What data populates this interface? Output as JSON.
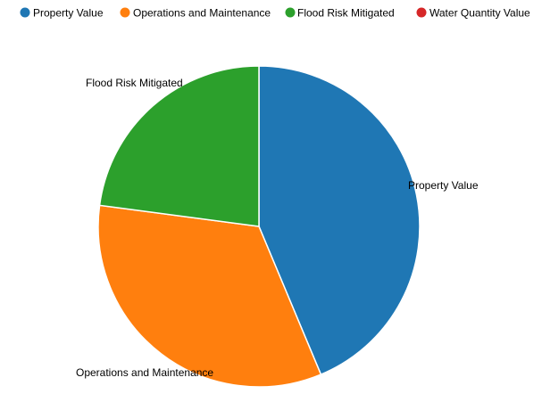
{
  "chart_data": {
    "type": "pie",
    "title": "",
    "categories": [
      "Property Value",
      "Operations and Maintenance",
      "Flood Risk Mitigated",
      "Water Quantity Value"
    ],
    "values": [
      43.7,
      33.4,
      22.9,
      0
    ],
    "value_unit": "percent (estimated from slice angles)",
    "colors": [
      "#1f77b4",
      "#ff7f0e",
      "#2ca02c",
      "#d62728"
    ],
    "legend": {
      "position": "top",
      "entries": [
        {
          "label": "Property Value",
          "color": "#1f77b4"
        },
        {
          "label": "Operations and Maintenance",
          "color": "#ff7f0e"
        },
        {
          "label": "Flood Risk Mitigated",
          "color": "#2ca02c"
        },
        {
          "label": "Water Quantity Value",
          "color": "#d62728"
        }
      ]
    },
    "slice_labels": [
      "Property Value",
      "Operations and Maintenance",
      "Flood Risk Mitigated"
    ],
    "start_angle": "12 o'clock, clockwise"
  }
}
